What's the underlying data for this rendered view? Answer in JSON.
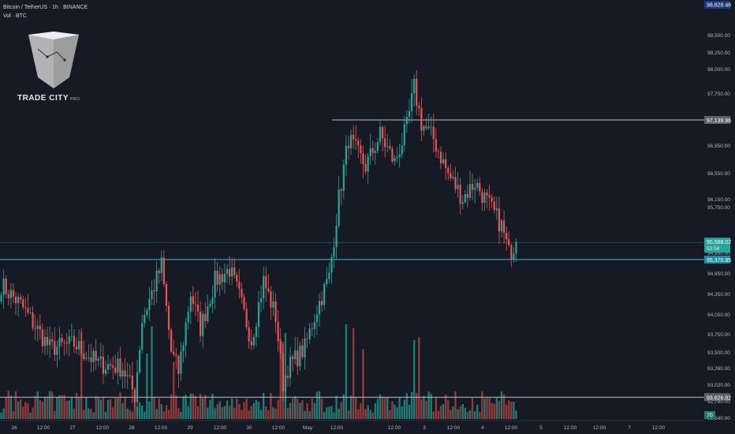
{
  "header": {
    "symbol_line": "Bitcoin / TetherUS · 1h · BINANCE",
    "volume_line": "Vol · BTC"
  },
  "logo": {
    "brand": "TRADE CITY",
    "suffix": "PRO"
  },
  "colors": {
    "background": "#161a25",
    "bull": "#26a69a",
    "bear": "#ef5350",
    "bull_volume": "#1e7a73",
    "bear_volume": "#8e3a3a",
    "support_line": "#b8bcc8",
    "cyan_line": "#3fb6c8",
    "axis_text": "#b2b5be",
    "price_badge": "#26a69a"
  },
  "price_axis": {
    "top_badge": "98,828.46",
    "ticks": [
      "98,500.00",
      "98,250.00",
      "98,000.00",
      "97,750.00",
      "97,350.00",
      "96,950.00",
      "96,550.00",
      "96,150.00",
      "95,750.00",
      "94,950.00",
      "94,650.00",
      "94,350.00",
      "94,050.00",
      "93,750.00",
      "93,500.00",
      "93,260.00",
      "93,020.00",
      "92,780.00",
      "92,540.00"
    ],
    "volume_badge": "70"
  },
  "time_axis": {
    "labels": [
      "26",
      "12:00",
      "27",
      "12:00",
      "28",
      "12:00",
      "29",
      "12:00",
      "30",
      "12:00",
      "May",
      "12:00",
      "12:00",
      "3",
      "12:00",
      "4",
      "12:00",
      "5",
      "12:00",
      "12:00",
      "7",
      "12:00"
    ]
  },
  "chart_data": {
    "type": "candlestick",
    "symbol": "Bitcoin / TetherUS",
    "interval": "1h",
    "exchange": "BINANCE",
    "bar_count": 213,
    "horizontal_levels": [
      {
        "price": 97139.96,
        "label": "97,139.96",
        "style": "support"
      },
      {
        "price": 95370.85,
        "label": "95,370.85",
        "style": "cyan"
      },
      {
        "price": 93626.82,
        "label": "93,626.82",
        "style": "support"
      }
    ],
    "upper_cyan_level": 95588.02,
    "current_price": {
      "label": "95,588.02",
      "countdown": "53:58"
    },
    "anchors": [
      {
        "bar": 0,
        "price": 95050
      },
      {
        "bar": 8,
        "price": 94800
      },
      {
        "bar": 20,
        "price": 94250
      },
      {
        "bar": 30,
        "price": 94300
      },
      {
        "bar": 40,
        "price": 94050
      },
      {
        "bar": 50,
        "price": 94000
      },
      {
        "bar": 55,
        "price": 93650
      },
      {
        "bar": 58,
        "price": 94600
      },
      {
        "bar": 66,
        "price": 95300
      },
      {
        "bar": 70,
        "price": 94200
      },
      {
        "bar": 73,
        "price": 93950
      },
      {
        "bar": 78,
        "price": 94950
      },
      {
        "bar": 82,
        "price": 94500
      },
      {
        "bar": 88,
        "price": 95100
      },
      {
        "bar": 94,
        "price": 95250
      },
      {
        "bar": 98,
        "price": 94900
      },
      {
        "bar": 103,
        "price": 94350
      },
      {
        "bar": 108,
        "price": 95100
      },
      {
        "bar": 113,
        "price": 94650
      },
      {
        "bar": 116,
        "price": 93800
      },
      {
        "bar": 118,
        "price": 94000
      },
      {
        "bar": 125,
        "price": 94250
      },
      {
        "bar": 130,
        "price": 94750
      },
      {
        "bar": 135,
        "price": 95150
      },
      {
        "bar": 139,
        "price": 96150
      },
      {
        "bar": 143,
        "price": 96900
      },
      {
        "bar": 150,
        "price": 96550
      },
      {
        "bar": 156,
        "price": 96950
      },
      {
        "bar": 162,
        "price": 96600
      },
      {
        "bar": 167,
        "price": 97050
      },
      {
        "bar": 170,
        "price": 97550
      },
      {
        "bar": 173,
        "price": 97100
      },
      {
        "bar": 178,
        "price": 96900
      },
      {
        "bar": 184,
        "price": 96450
      },
      {
        "bar": 190,
        "price": 96150
      },
      {
        "bar": 195,
        "price": 96350
      },
      {
        "bar": 201,
        "price": 96050
      },
      {
        "bar": 206,
        "price": 95800
      },
      {
        "bar": 209,
        "price": 95450
      },
      {
        "bar": 212,
        "price": 95588
      }
    ],
    "ylim": [
      92500,
      98828.46
    ]
  }
}
